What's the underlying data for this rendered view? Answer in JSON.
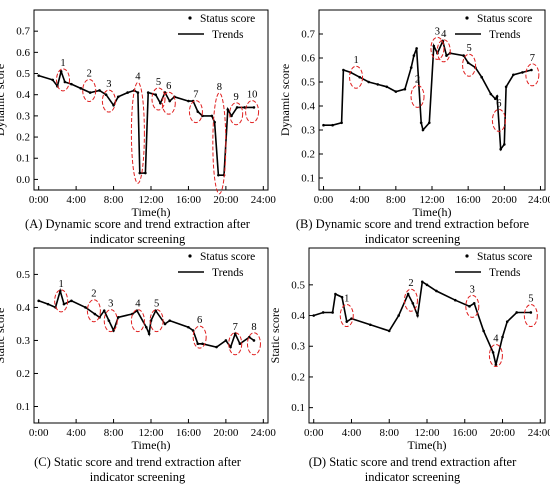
{
  "figure": {
    "panels": [
      {
        "caption_line1": "(A) Dynamic score and trend extraction after",
        "caption_line2": "indicator screening"
      },
      {
        "caption_line1": "(B) Dynamic score and trend extraction before",
        "caption_line2": "indicator screening"
      },
      {
        "caption_line1": "(C) Static score and trend extraction after",
        "caption_line2": "indicator screening"
      },
      {
        "caption_line1": "(D) Static score and trend extraction after",
        "caption_line2": "indicator screening"
      }
    ]
  },
  "chart_data": [
    {
      "type": "line",
      "title": "",
      "xlabel": "Time(h)",
      "ylabel": "Dynamic score",
      "xlim": [
        -0.5,
        24.5
      ],
      "ylim": [
        -0.05,
        0.8
      ],
      "x_ticks": [
        "0:00",
        "4:00",
        "8:00",
        "12:00",
        "16:00",
        "20:00",
        "24:00"
      ],
      "y_ticks": [
        "0.0",
        "0.1",
        "0.2",
        "0.3",
        "0.4",
        "0.5",
        "0.6",
        "0.7"
      ],
      "legend": [
        "Status score",
        "Trends"
      ],
      "legend_position": "top-right",
      "series": [
        {
          "name": "Trends",
          "x": [
            0,
            1.5,
            2,
            2.4,
            2.8,
            3.5,
            4.5,
            5.5,
            6.5,
            7.2,
            8,
            8.5,
            9.5,
            10.2,
            10.6,
            10.8,
            11.4,
            11.7,
            12.5,
            13,
            13.5,
            14,
            14.5,
            16,
            16.5,
            17,
            17.5,
            18.5,
            18.8,
            19.2,
            19.8,
            20.2,
            20.6,
            21.2,
            22,
            23
          ],
          "y": [
            0.49,
            0.47,
            0.44,
            0.51,
            0.46,
            0.45,
            0.43,
            0.41,
            0.42,
            0.4,
            0.35,
            0.39,
            0.41,
            0.42,
            0.41,
            0.03,
            0.03,
            0.41,
            0.4,
            0.36,
            0.41,
            0.37,
            0.39,
            0.37,
            0.37,
            0.32,
            0.3,
            0.3,
            0.27,
            0.02,
            0.02,
            0.33,
            0.3,
            0.34,
            0.34,
            0.34
          ]
        }
      ],
      "annotations": [
        "1",
        "2",
        "3",
        "4",
        "5",
        "6",
        "7",
        "8",
        "9",
        "10"
      ],
      "annotation_x": [
        2.6,
        5.4,
        7.5,
        10.6,
        12.8,
        13.9,
        16.8,
        19.3,
        21.1,
        22.8
      ],
      "annotation_y": [
        0.47,
        0.42,
        0.37,
        0.22,
        0.38,
        0.36,
        0.32,
        0.17,
        0.31,
        0.32
      ]
    },
    {
      "type": "line",
      "title": "",
      "xlabel": "Time(h)",
      "ylabel": "Dynamic score",
      "xlim": [
        -0.5,
        24.5
      ],
      "ylim": [
        0.05,
        0.8
      ],
      "x_ticks": [
        "0:00",
        "4:00",
        "8:00",
        "12:00",
        "16:00",
        "20:00",
        "24:00"
      ],
      "y_ticks": [
        "0.1",
        "0.2",
        "0.3",
        "0.4",
        "0.5",
        "0.6",
        "0.7"
      ],
      "legend": [
        "Status score",
        "Trends"
      ],
      "legend_position": "top-right",
      "series": [
        {
          "name": "Trends",
          "x": [
            0,
            1,
            2,
            2.2,
            3,
            4,
            5,
            6,
            7,
            8,
            9,
            9.7,
            10,
            10.3,
            10.8,
            11,
            11.7,
            12.2,
            12.6,
            13.2,
            13.6,
            14,
            15.5,
            16,
            16.8,
            17.5,
            18.5,
            19,
            19.2,
            19.6,
            20,
            20.2,
            21,
            22,
            23
          ],
          "y": [
            0.32,
            0.32,
            0.33,
            0.55,
            0.54,
            0.52,
            0.5,
            0.49,
            0.48,
            0.46,
            0.47,
            0.56,
            0.61,
            0.64,
            0.33,
            0.3,
            0.33,
            0.65,
            0.62,
            0.67,
            0.61,
            0.62,
            0.61,
            0.58,
            0.56,
            0.52,
            0.45,
            0.43,
            0.44,
            0.22,
            0.24,
            0.48,
            0.53,
            0.54,
            0.55
          ]
        }
      ],
      "annotations": [
        "1",
        "2",
        "3",
        "4",
        "5",
        "6",
        "7"
      ],
      "annotation_x": [
        3.6,
        10.4,
        12.6,
        13.3,
        16.1,
        19.4,
        23.1
      ],
      "annotation_y": [
        0.52,
        0.44,
        0.64,
        0.63,
        0.57,
        0.34,
        0.53
      ]
    },
    {
      "type": "line",
      "title": "",
      "xlabel": "Time(h)",
      "ylabel": "Static score",
      "xlim": [
        -0.5,
        24.5
      ],
      "ylim": [
        0.05,
        0.58
      ],
      "x_ticks": [
        "0:00",
        "4:00",
        "8:00",
        "12:00",
        "16:00",
        "20:00",
        "24:00"
      ],
      "y_ticks": [
        "0.1",
        "0.2",
        "0.3",
        "0.4",
        "0.5"
      ],
      "legend": [
        "Status score",
        "Trends"
      ],
      "legend_position": "top-right",
      "series": [
        {
          "name": "Trends",
          "x": [
            0,
            1,
            1.8,
            2.3,
            2.7,
            3.5,
            5,
            6,
            6.5,
            7,
            7.5,
            8,
            8.5,
            10,
            10.5,
            11.5,
            11.8,
            12,
            12.5,
            13.5,
            14,
            16,
            16.5,
            17,
            17.5,
            19,
            20,
            20.5,
            21,
            21.5,
            22.5,
            23
          ],
          "y": [
            0.42,
            0.41,
            0.4,
            0.45,
            0.41,
            0.42,
            0.4,
            0.38,
            0.37,
            0.39,
            0.36,
            0.33,
            0.37,
            0.38,
            0.39,
            0.34,
            0.32,
            0.36,
            0.39,
            0.35,
            0.36,
            0.34,
            0.33,
            0.29,
            0.29,
            0.28,
            0.3,
            0.28,
            0.32,
            0.29,
            0.31,
            0.3
          ]
        }
      ],
      "annotations": [
        "1",
        "2",
        "3",
        "4",
        "5",
        "6",
        "7",
        "8"
      ],
      "annotation_x": [
        2.4,
        5.9,
        7.7,
        10.6,
        12.6,
        17.2,
        21,
        23
      ],
      "annotation_y": [
        0.42,
        0.39,
        0.36,
        0.36,
        0.36,
        0.31,
        0.29,
        0.29
      ]
    },
    {
      "type": "line",
      "title": "",
      "xlabel": "Time(h)",
      "ylabel": "Static score",
      "xlim": [
        -0.5,
        24.5
      ],
      "ylim": [
        0.05,
        0.62
      ],
      "x_ticks": [
        "0:00",
        "4:00",
        "8:00",
        "12:00",
        "16:00",
        "20:00",
        "24:00"
      ],
      "y_ticks": [
        "0.1",
        "0.2",
        "0.3",
        "0.4",
        "0.5"
      ],
      "legend": [
        "Status score",
        "Trends"
      ],
      "legend_position": "top-right",
      "series": [
        {
          "name": "Trends",
          "x": [
            0,
            1,
            2,
            2.3,
            3,
            3.5,
            4,
            6,
            8,
            9,
            10,
            10.5,
            11,
            11.5,
            12,
            13,
            15,
            16.5,
            17,
            18,
            19,
            19.3,
            20,
            20.5,
            21.5,
            23
          ],
          "y": [
            0.4,
            0.41,
            0.41,
            0.47,
            0.46,
            0.38,
            0.39,
            0.37,
            0.35,
            0.4,
            0.47,
            0.44,
            0.4,
            0.51,
            0.5,
            0.48,
            0.45,
            0.43,
            0.44,
            0.35,
            0.28,
            0.24,
            0.33,
            0.38,
            0.41,
            0.41
          ]
        }
      ],
      "annotations": [
        "1",
        "2",
        "3",
        "4",
        "5"
      ],
      "annotation_x": [
        3.5,
        10.3,
        16.8,
        19.3,
        23
      ],
      "annotation_y": [
        0.4,
        0.45,
        0.43,
        0.27,
        0.4
      ]
    }
  ]
}
